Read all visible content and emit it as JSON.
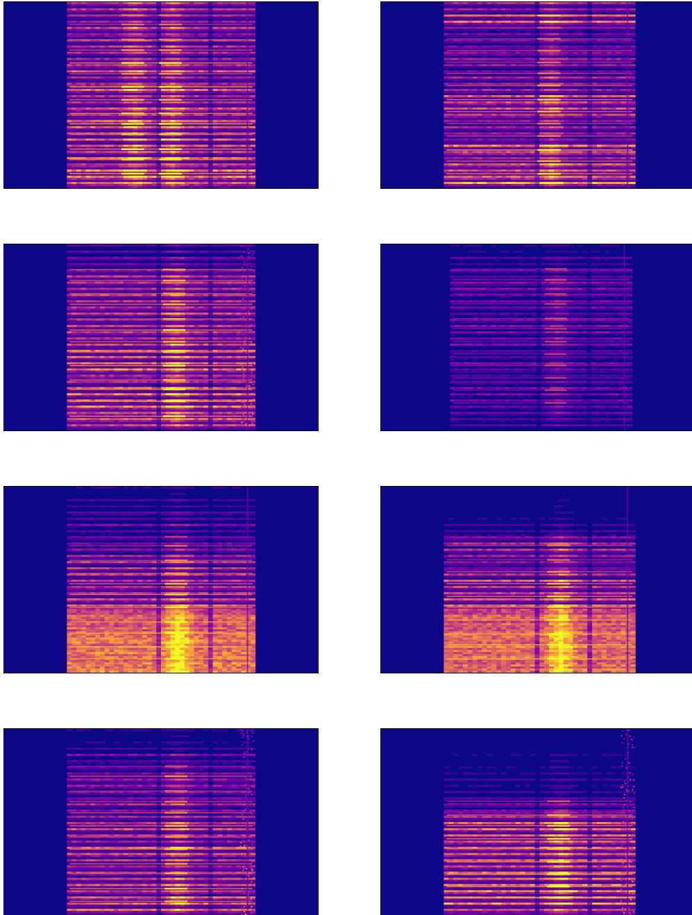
{
  "chart_data": [
    {
      "type": "heatmap",
      "colormap": "plasma",
      "background_color": "#0d0887",
      "axes_visible": false,
      "grid": false,
      "legend": "none",
      "time_extent": [
        0.2,
        0.8
      ],
      "band_intensity": [
        0.55,
        0.5,
        0.6,
        0.55,
        0.6,
        0.85,
        0.6,
        0.9,
        0.7,
        0.8,
        0.9,
        0.75,
        0.85,
        0.8,
        0.9,
        1.0
      ],
      "hot_regions": [
        0.35,
        0.55
      ]
    },
    {
      "type": "heatmap",
      "colormap": "plasma",
      "background_color": "#0d0887",
      "axes_visible": false,
      "grid": false,
      "legend": "none",
      "time_extent": [
        0.2,
        0.81
      ],
      "band_intensity": [
        0.5,
        0.75,
        0.4,
        0.45,
        0.5,
        0.45,
        0.5,
        0.6,
        0.75,
        0.7,
        0.5,
        0.55,
        0.95,
        0.7,
        0.8,
        1.0
      ],
      "hot_regions": [
        0.55
      ]
    },
    {
      "type": "heatmap",
      "colormap": "plasma",
      "background_color": "#0d0887",
      "axes_visible": false,
      "grid": false,
      "legend": "none",
      "time_extent": [
        0.2,
        0.8
      ],
      "band_intensity": [
        0.2,
        0.3,
        0.6,
        0.65,
        0.6,
        0.7,
        0.65,
        0.85,
        0.7,
        0.75,
        0.85,
        0.7,
        0.8,
        0.9,
        0.85,
        0.8
      ],
      "hot_regions": [
        0.57
      ],
      "edge_noise": true
    },
    {
      "type": "heatmap",
      "colormap": "plasma",
      "background_color": "#0d0887",
      "axes_visible": false,
      "grid": false,
      "legend": "none",
      "time_extent": [
        0.22,
        0.8
      ],
      "band_intensity": [
        0.1,
        0.2,
        0.3,
        0.35,
        0.3,
        0.3,
        0.35,
        0.3,
        0.3,
        0.3,
        0.35,
        0.3,
        0.3,
        0.3,
        0.25,
        0.2
      ],
      "hot_regions": [
        0.58
      ]
    },
    {
      "type": "heatmap",
      "colormap": "plasma",
      "background_color": "#0d0887",
      "axes_visible": false,
      "grid": false,
      "legend": "none",
      "time_extent": [
        0.2,
        0.8
      ],
      "band_intensity": [
        0.1,
        0.15,
        0.25,
        0.3,
        0.3,
        0.45,
        0.55,
        0.6,
        0.7,
        0.75,
        0.8,
        0.85,
        0.9,
        0.95,
        0.95,
        1.0
      ],
      "hot_regions": [
        0.58
      ],
      "smooth_low": true
    },
    {
      "type": "heatmap",
      "colormap": "plasma",
      "background_color": "#0d0887",
      "axes_visible": false,
      "grid": false,
      "legend": "none",
      "time_extent": [
        0.2,
        0.81
      ],
      "band_intensity": [
        0.05,
        0.1,
        0.1,
        0.2,
        0.45,
        0.5,
        0.45,
        0.6,
        0.7,
        0.75,
        0.8,
        0.85,
        0.9,
        0.95,
        0.95,
        1.0
      ],
      "hot_regions": [
        0.6
      ],
      "smooth_low": true
    },
    {
      "type": "heatmap",
      "colormap": "plasma",
      "background_color": "#0d0887",
      "axes_visible": false,
      "grid": false,
      "legend": "none",
      "time_extent": [
        0.2,
        0.8
      ],
      "band_intensity": [
        0.1,
        0.15,
        0.3,
        0.35,
        0.6,
        0.45,
        0.5,
        0.55,
        0.7,
        0.6,
        0.75,
        0.65,
        0.7,
        0.8,
        0.7,
        0.85
      ],
      "hot_regions": [
        0.58
      ],
      "edge_noise": true
    },
    {
      "type": "heatmap",
      "colormap": "plasma",
      "background_color": "#0d0887",
      "axes_visible": false,
      "grid": false,
      "legend": "none",
      "time_extent": [
        0.2,
        0.81
      ],
      "band_intensity": [
        0.05,
        0.05,
        0.1,
        0.1,
        0.15,
        0.2,
        0.4,
        0.7,
        0.75,
        0.8,
        0.75,
        0.85,
        0.9,
        0.85,
        0.95,
        0.9
      ],
      "hot_regions": [
        0.6
      ],
      "edge_noise": true
    }
  ]
}
